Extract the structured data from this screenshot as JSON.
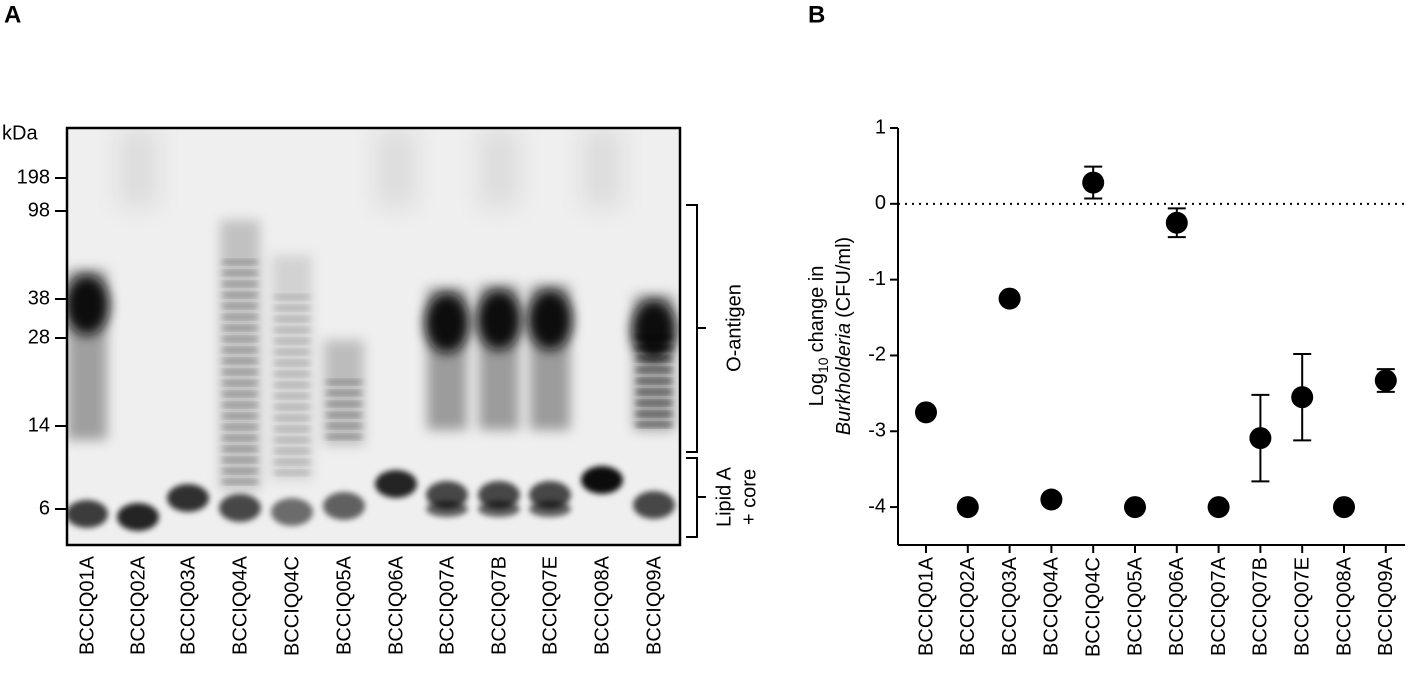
{
  "panel_a": {
    "label": "A",
    "unit": "kDa",
    "markers": [
      198,
      98,
      38,
      28,
      14,
      6
    ],
    "lanes": [
      "BCCIQ01A",
      "BCCIQ02A",
      "BCCIQ03A",
      "BCCIQ04A",
      "BCCIQ04C",
      "BCCIQ05A",
      "BCCIQ06A",
      "BCCIQ07A",
      "BCCIQ07B",
      "BCCIQ07E",
      "BCCIQ08A",
      "BCCIQ09A"
    ],
    "regions": [
      {
        "label": "O-antigen"
      },
      {
        "label": [
          "Lipid A",
          "+ core"
        ]
      }
    ]
  },
  "chart_data": {
    "type": "scatter",
    "panel_label": "B",
    "y_label": {
      "prefix": "Log",
      "subscript": "10",
      "middle": "change in",
      "italic": "Burkholderia",
      "suffix": "(CFU/ml)"
    },
    "categories": [
      "BCCIQ01A",
      "BCCIQ02A",
      "BCCIQ03A",
      "BCCIQ04A",
      "BCCIQ04C",
      "BCCIQ05A",
      "BCCIQ06A",
      "BCCIQ07A",
      "BCCIQ07B",
      "BCCIQ07E",
      "BCCIQ08A",
      "BCCIQ09A"
    ],
    "values": [
      -2.75,
      -4,
      -1.25,
      -3.9,
      0.28,
      -4,
      -0.25,
      -4,
      -3.09,
      -2.55,
      -4,
      -2.33
    ],
    "errors": [
      null,
      null,
      null,
      0.07,
      0.21,
      null,
      0.19,
      null,
      0.57,
      0.57,
      null,
      0.15
    ],
    "color": "#000000",
    "ylim": [
      -4.5,
      1
    ],
    "yticks": [
      -4,
      -3,
      -2,
      -1,
      0,
      1
    ],
    "reference_line": 0
  }
}
